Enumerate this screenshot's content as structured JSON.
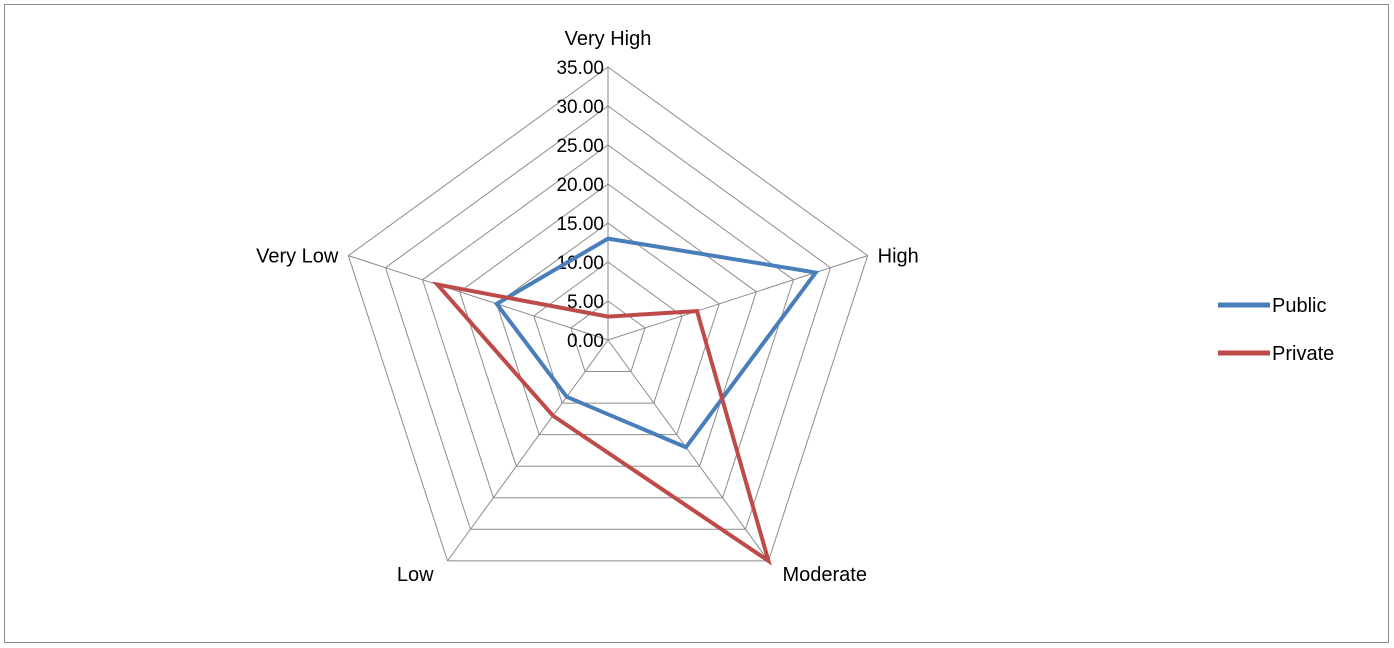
{
  "chart_data": {
    "type": "radar",
    "title": "",
    "categories": [
      "Very High",
      "High",
      "Moderate",
      "Low",
      "Very Low"
    ],
    "rlim": [
      0,
      35
    ],
    "r_ticks": [
      "0.00",
      "5.00",
      "10.00",
      "15.00",
      "20.00",
      "25.00",
      "30.00",
      "35.00"
    ],
    "grid": true,
    "legend_position": "right",
    "series": [
      {
        "name": "Public",
        "color": "#4a7ebb",
        "values": [
          13,
          28,
          17,
          9,
          15
        ]
      },
      {
        "name": "Private",
        "color": "#be4b48",
        "values": [
          3,
          12,
          35,
          12,
          23
        ]
      }
    ]
  }
}
